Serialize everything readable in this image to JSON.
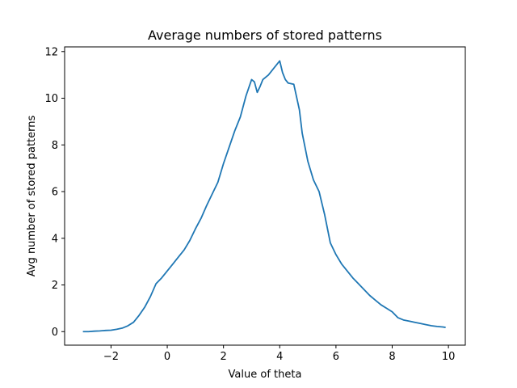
{
  "chart_data": {
    "type": "line",
    "title": "Average numbers of stored patterns",
    "xlabel": "Value of theta",
    "ylabel": "Avg number of stored patterns",
    "xlim": [
      -3.65,
      10.6
    ],
    "ylim": [
      -0.58,
      12.2
    ],
    "xticks": [
      -2,
      0,
      2,
      4,
      6,
      8,
      10
    ],
    "yticks": [
      0,
      2,
      4,
      6,
      8,
      10,
      12
    ],
    "grid": false,
    "colors": {
      "series": "#1f77b4"
    },
    "series": [
      {
        "x": [
          -3.0,
          -2.8,
          -2.6,
          -2.4,
          -2.2,
          -2.0,
          -1.8,
          -1.6,
          -1.4,
          -1.2,
          -1.0,
          -0.8,
          -0.6,
          -0.4,
          -0.2,
          0.0,
          0.2,
          0.4,
          0.6,
          0.8,
          1.0,
          1.2,
          1.4,
          1.6,
          1.8,
          2.0,
          2.2,
          2.4,
          2.6,
          2.8,
          3.0,
          3.1,
          3.2,
          3.3,
          3.4,
          3.6,
          3.8,
          4.0,
          4.1,
          4.2,
          4.3,
          4.5,
          4.7,
          4.8,
          5.0,
          5.2,
          5.4,
          5.6,
          5.8,
          6.0,
          6.2,
          6.4,
          6.6,
          6.8,
          7.0,
          7.2,
          7.4,
          7.6,
          7.8,
          8.0,
          8.2,
          8.4,
          8.6,
          8.8,
          9.0,
          9.2,
          9.4,
          9.6,
          9.8,
          9.9
        ],
        "values": [
          0.0,
          0.0,
          0.02,
          0.03,
          0.05,
          0.06,
          0.1,
          0.15,
          0.25,
          0.4,
          0.7,
          1.05,
          1.5,
          2.05,
          2.3,
          2.6,
          2.9,
          3.2,
          3.5,
          3.9,
          4.4,
          4.85,
          5.4,
          5.9,
          6.4,
          7.2,
          7.9,
          8.6,
          9.2,
          10.1,
          10.8,
          10.7,
          10.25,
          10.5,
          10.8,
          11.0,
          11.3,
          11.6,
          11.1,
          10.8,
          10.65,
          10.6,
          9.5,
          8.5,
          7.3,
          6.5,
          6.0,
          5.0,
          3.8,
          3.3,
          2.9,
          2.6,
          2.3,
          2.05,
          1.8,
          1.55,
          1.35,
          1.15,
          1.0,
          0.85,
          0.6,
          0.5,
          0.45,
          0.4,
          0.35,
          0.3,
          0.25,
          0.22,
          0.2,
          0.18
        ]
      }
    ]
  }
}
